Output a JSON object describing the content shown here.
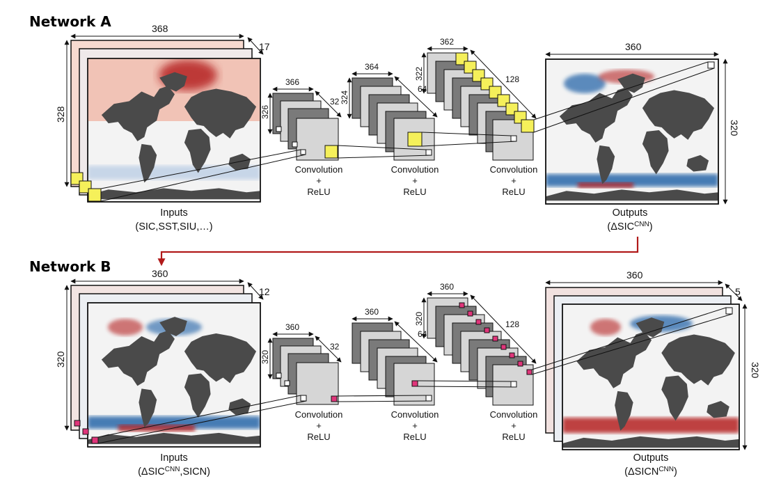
{
  "network_a": {
    "title": "Network A",
    "input": {
      "width": "368",
      "height": "328",
      "depth": "17",
      "caption_line1": "Inputs",
      "caption_line2": "(SIC,SST,SIU,…)"
    },
    "conv1": {
      "width": "366",
      "height": "326",
      "depth": "32",
      "caption_line1": "Convolution",
      "caption_line2": "+",
      "caption_line3": "ReLU"
    },
    "conv2": {
      "width": "364",
      "height": "324",
      "depth": "64",
      "caption_line1": "Convolution",
      "caption_line2": "+",
      "caption_line3": "ReLU"
    },
    "conv3": {
      "width": "362",
      "height": "322",
      "depth": "128",
      "caption_line1": "Convolution",
      "caption_line2": "+",
      "caption_line3": "ReLU"
    },
    "output": {
      "width": "360",
      "height": "320",
      "caption_line1": "Outputs",
      "caption_prefix": "(ΔSIC",
      "caption_sup": "CNN",
      "caption_suffix": ")"
    }
  },
  "network_b": {
    "title": "Network B",
    "input": {
      "width": "360",
      "height": "320",
      "depth": "12",
      "caption_line1": "Inputs",
      "caption_prefix": "(ΔSIC",
      "caption_sup": "CNN",
      "caption_suffix": ",SICN)"
    },
    "conv1": {
      "width": "360",
      "height": "320",
      "depth": "32",
      "caption_line1": "Convolution",
      "caption_line2": "+",
      "caption_line3": "ReLU"
    },
    "conv2": {
      "width": "360",
      "height": "320",
      "depth": "64",
      "caption_line1": "Convolution",
      "caption_line2": "+",
      "caption_line3": "ReLU"
    },
    "conv3": {
      "width": "360",
      "height": "320",
      "depth": "128",
      "caption_line1": "Convolution",
      "caption_line2": "+",
      "caption_line3": "ReLU"
    },
    "output": {
      "width": "360",
      "height": "320",
      "depth": "5",
      "caption_line1": "Outputs",
      "caption_prefix": "(ΔSICN",
      "caption_sup": "CNN",
      "caption_suffix": ")"
    }
  },
  "colors": {
    "kernel_a": "#f5f05a",
    "kernel_b": "#e0357a",
    "connector_arrow": "#b11a1a",
    "land": "#4a4a4a",
    "ocean": "#f3f3f3",
    "warm": "#c62828",
    "cool": "#1d5fa5",
    "layer_dark": "#7a7a7a",
    "layer_light": "#d6d6d6"
  }
}
